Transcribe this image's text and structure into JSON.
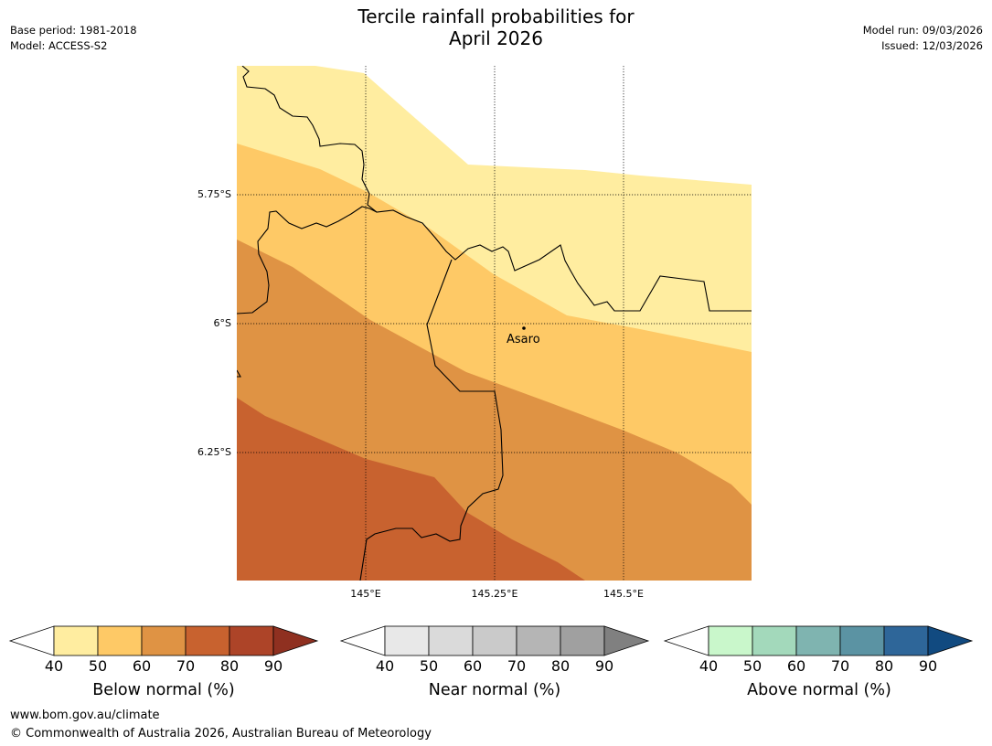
{
  "title": {
    "line1": "Tercile rainfall probabilities for",
    "line2": "April 2026"
  },
  "meta_left": {
    "base_period": "Base period: 1981-2018",
    "model": "Model: ACCESS-S2"
  },
  "meta_right": {
    "model_run": "Model run: 09/03/2026",
    "issued": "Issued: 12/03/2026"
  },
  "map": {
    "latitude_labels": [
      "5.75°S",
      "6°S",
      "6.25°S"
    ],
    "longitude_labels": [
      "145°E",
      "145.25°E",
      "145.5°E"
    ],
    "place": {
      "name": "Asaro"
    },
    "colors": {
      "c40": "#ffeda0",
      "c50": "#fec966",
      "c60": "#df9344",
      "c70": "#c8622f",
      "c80": "#ad4428",
      "c90": "#8f3020"
    }
  },
  "colorbars": [
    {
      "title": "Below normal (%)",
      "ticks": [
        "40",
        "50",
        "60",
        "70",
        "80",
        "90"
      ],
      "colors": [
        "#ffeda0",
        "#fec966",
        "#df9344",
        "#c8622f",
        "#ad4428",
        "#8f3020"
      ]
    },
    {
      "title": "Near normal (%)",
      "ticks": [
        "40",
        "50",
        "60",
        "70",
        "80",
        "90"
      ],
      "colors": [
        "#e8e8e8",
        "#dadada",
        "#cacaca",
        "#b5b5b5",
        "#a0a0a0",
        "#808080"
      ]
    },
    {
      "title": "Above normal (%)",
      "ticks": [
        "40",
        "50",
        "60",
        "70",
        "80",
        "90"
      ],
      "colors": [
        "#c9f7cb",
        "#a3d9bb",
        "#7fb4b0",
        "#5b93a3",
        "#2e6699",
        "#114a80"
      ]
    }
  ],
  "footer": {
    "url": "www.bom.gov.au/climate",
    "copyright": "© Commonwealth of Australia 2026, Australian Bureau of Meteorology"
  }
}
